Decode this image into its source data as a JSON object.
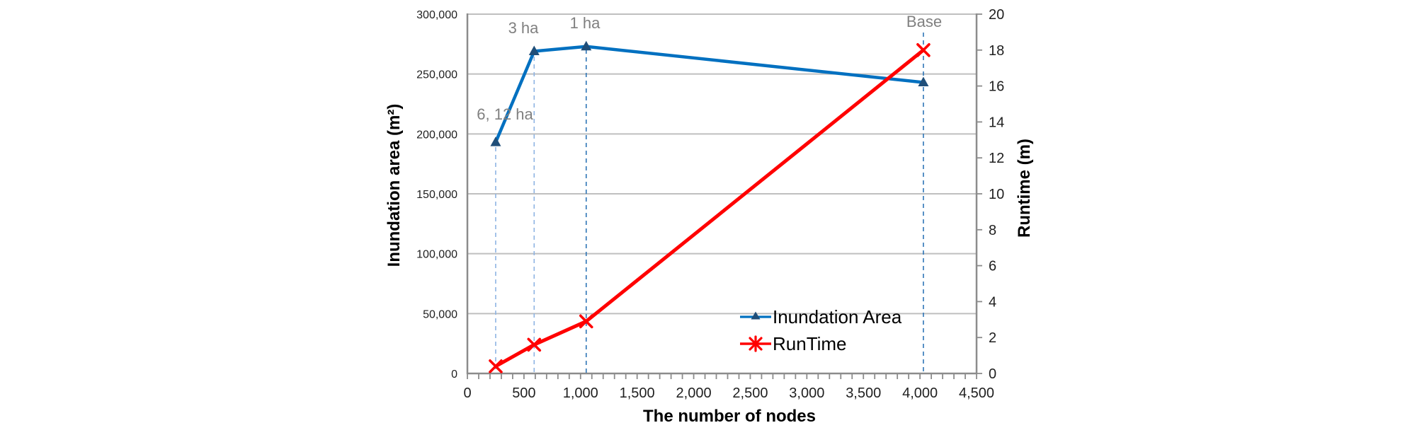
{
  "page": {
    "background": "#ffffff"
  },
  "chart_data": {
    "type": "line",
    "title": "",
    "x_axis": {
      "title": "The number of nodes",
      "min": 0,
      "max": 4500,
      "major_tick_step": 500,
      "minor_tick_step": 100,
      "tick_labels": [
        "0",
        "500",
        "1,000",
        "1,500",
        "2,000",
        "2,500",
        "3,000",
        "3,500",
        "4,000",
        "4,500"
      ]
    },
    "left_axis": {
      "title": "Inundation area (m²)",
      "min": 0,
      "max": 300000,
      "tick_step": 50000,
      "tick_labels": [
        "0",
        "50,000",
        "100,000",
        "150,000",
        "200,000",
        "250,000",
        "300,000"
      ]
    },
    "right_axis": {
      "title": "Runtime (m)",
      "min": 0,
      "max": 20,
      "tick_step": 2,
      "tick_labels": [
        "0",
        "2",
        "4",
        "6",
        "8",
        "10",
        "12",
        "14",
        "16",
        "18",
        "20"
      ]
    },
    "x": [
      250,
      590,
      1050,
      4030
    ],
    "series": [
      {
        "name": "Inundation Area",
        "axis": "left",
        "color": "#0070C0",
        "marker": "triangle",
        "marker_color": "#1F4E79",
        "values": [
          193000,
          269000,
          273000,
          243000
        ]
      },
      {
        "name": "RunTime",
        "axis": "right",
        "color": "#FF0000",
        "marker": "x-asterisk",
        "marker_color": "#FF0000",
        "values": [
          0.4,
          1.6,
          2.9,
          18
        ]
      }
    ],
    "annotations": [
      {
        "text": "6, 12 ha",
        "x": 250
      },
      {
        "text": "3 ha",
        "x": 590
      },
      {
        "text": "1 ha",
        "x": 1050
      },
      {
        "text": "Base",
        "x": 4030
      }
    ],
    "droplines": {
      "x": [
        250,
        590,
        1050,
        4030
      ],
      "colors": [
        "#8EB4E3",
        "#8EB4E3",
        "#2E75B6",
        "#2E75B6"
      ]
    },
    "gridlines": true,
    "legend": {
      "position": "inside-bottom-right"
    },
    "colors": {
      "gridline": "#BFBFBF",
      "axis": "#8C8C8C",
      "tick_label": "#1f1f1f",
      "annotation": "#808080",
      "background": "#ffffff"
    }
  }
}
